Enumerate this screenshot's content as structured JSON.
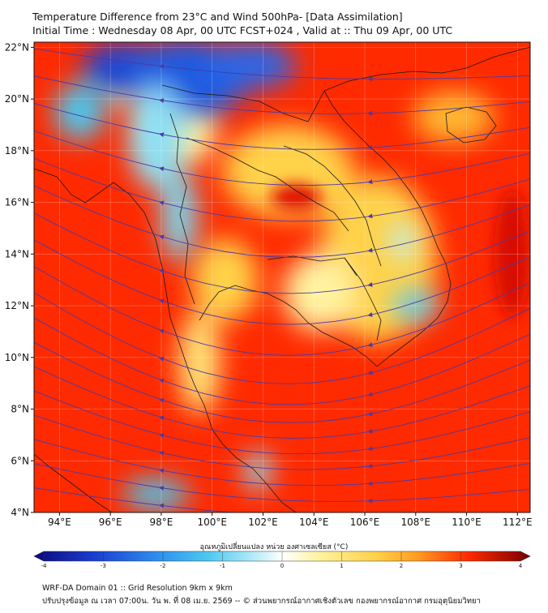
{
  "header": {
    "title_line1": "Temperature Difference from 23°C and Wind 500hPa- [Data Assimilation]",
    "title_line2": "Initial Time : Wednesday 08 Apr, 00 UTC FCST+024 , Valid at ::  Thu 09 Apr, 00 UTC"
  },
  "map": {
    "lon_range": [
      93,
      112.5
    ],
    "lat_range": [
      4,
      22.2
    ],
    "lat_ticks": [
      {
        "value": 4,
        "label": "4°N"
      },
      {
        "value": 6,
        "label": "6°N"
      },
      {
        "value": 8,
        "label": "8°N"
      },
      {
        "value": 10,
        "label": "10°N"
      },
      {
        "value": 12,
        "label": "12°N"
      },
      {
        "value": 14,
        "label": "14°N"
      },
      {
        "value": 16,
        "label": "16°N"
      },
      {
        "value": 18,
        "label": "18°N"
      },
      {
        "value": 20,
        "label": "20°N"
      },
      {
        "value": 22,
        "label": "22°N"
      }
    ],
    "lon_ticks": [
      {
        "value": 94,
        "label": "94°E"
      },
      {
        "value": 96,
        "label": "96°E"
      },
      {
        "value": 98,
        "label": "98°E"
      },
      {
        "value": 100,
        "label": "100°E"
      },
      {
        "value": 102,
        "label": "102°E"
      },
      {
        "value": 104,
        "label": "104°E"
      },
      {
        "value": 106,
        "label": "106°E"
      },
      {
        "value": 108,
        "label": "108°E"
      },
      {
        "value": 110,
        "label": "110°E"
      },
      {
        "value": 112,
        "label": "112°E"
      }
    ],
    "background_color": "#ff2a00",
    "cold_patches": [
      {
        "lon": 96.5,
        "lat": 21.2,
        "rx": 1.6,
        "ry": 1.0,
        "color": "#1a3fd0"
      },
      {
        "lon": 99.0,
        "lat": 20.8,
        "rx": 2.5,
        "ry": 1.5,
        "color": "#1f5ae0"
      },
      {
        "lon": 101.5,
        "lat": 21.3,
        "rx": 1.8,
        "ry": 0.9,
        "color": "#2a66e8"
      },
      {
        "lon": 94.8,
        "lat": 19.5,
        "rx": 1.0,
        "ry": 1.1,
        "color": "#4cc8f0"
      },
      {
        "lon": 97.8,
        "lat": 18.5,
        "rx": 1.1,
        "ry": 2.0,
        "color": "#8fe0f4"
      },
      {
        "lon": 98.7,
        "lat": 15.5,
        "rx": 0.7,
        "ry": 1.8,
        "color": "#7ad8f0"
      },
      {
        "lon": 107.5,
        "lat": 14.5,
        "rx": 0.5,
        "ry": 0.7,
        "color": "#bdeef8"
      },
      {
        "lon": 108.0,
        "lat": 12.0,
        "rx": 0.9,
        "ry": 0.6,
        "color": "#60ccf0"
      },
      {
        "lon": 97.8,
        "lat": 4.7,
        "rx": 1.3,
        "ry": 0.6,
        "color": "#4cc8f0"
      },
      {
        "lon": 101.8,
        "lat": 5.6,
        "rx": 0.5,
        "ry": 0.8,
        "color": "#8fe0f4"
      }
    ],
    "warm_patches": [
      {
        "lon": 98.8,
        "lat": 19.0,
        "rx": 1.4,
        "ry": 1.6,
        "color": "#fff3a0"
      },
      {
        "lon": 103.0,
        "lat": 17.2,
        "rx": 2.6,
        "ry": 1.8,
        "color": "#ffd24a"
      },
      {
        "lon": 106.5,
        "lat": 13.8,
        "rx": 2.3,
        "ry": 3.2,
        "color": "#ffd24a"
      },
      {
        "lon": 104.2,
        "lat": 12.5,
        "rx": 1.4,
        "ry": 1.5,
        "color": "#fff3a0"
      },
      {
        "lon": 100.5,
        "lat": 13.0,
        "rx": 1.3,
        "ry": 1.6,
        "color": "#ffd24a"
      },
      {
        "lon": 99.5,
        "lat": 9.8,
        "rx": 0.8,
        "ry": 2.0,
        "color": "#ffe87a"
      },
      {
        "lon": 109.5,
        "lat": 19.3,
        "rx": 1.6,
        "ry": 1.0,
        "color": "#ffb830"
      },
      {
        "lon": 96.3,
        "lat": 20.5,
        "rx": 0.8,
        "ry": 0.7,
        "color": "#fff3a0"
      }
    ],
    "hot_patches": [
      {
        "lon": 103.3,
        "lat": 16.2,
        "rx": 1.0,
        "ry": 0.5,
        "color": "#e01000"
      },
      {
        "lon": 111.8,
        "lat": 14.0,
        "rx": 0.7,
        "ry": 2.5,
        "color": "#d80c00"
      }
    ],
    "streamlines": [
      {
        "lat0": 21.5,
        "dip": 0.6
      },
      {
        "lat0": 20.5,
        "dip": 1.0
      },
      {
        "lat0": 19.5,
        "dip": 1.4
      },
      {
        "lat0": 18.5,
        "dip": 1.8
      },
      {
        "lat0": 17.5,
        "dip": 2.2
      },
      {
        "lat0": 16.5,
        "dip": 2.6
      },
      {
        "lat0": 15.5,
        "dip": 3.0
      },
      {
        "lat0": 14.5,
        "dip": 3.2
      },
      {
        "lat0": 13.5,
        "dip": 3.4
      },
      {
        "lat0": 12.5,
        "dip": 3.5
      },
      {
        "lat0": 11.5,
        "dip": 3.3
      },
      {
        "lat0": 10.5,
        "dip": 3.0
      },
      {
        "lat0": 9.5,
        "dip": 2.6
      },
      {
        "lat0": 8.5,
        "dip": 2.2
      },
      {
        "lat0": 7.5,
        "dip": 1.8
      },
      {
        "lat0": 6.5,
        "dip": 1.4
      },
      {
        "lat0": 5.5,
        "dip": 1.0
      },
      {
        "lat0": 4.5,
        "dip": 0.6
      }
    ],
    "streamline_color": "#4a3aa8"
  },
  "colorbar": {
    "title": "อุณหภูมิเปลี่ยนแปลง หน่วย องศาเซลเซียส (°C)",
    "min": -4,
    "max": 4,
    "ticks": [
      {
        "value": -4,
        "label": "-4"
      },
      {
        "value": -3,
        "label": "-3"
      },
      {
        "value": -2,
        "label": "-2"
      },
      {
        "value": -1,
        "label": "-1"
      },
      {
        "value": 0,
        "label": "0"
      },
      {
        "value": 1,
        "label": "1"
      },
      {
        "value": 2,
        "label": "2"
      },
      {
        "value": 3,
        "label": "3"
      },
      {
        "value": 4,
        "label": "4"
      }
    ],
    "stops": [
      {
        "value": -4,
        "color": "#0a0a80"
      },
      {
        "value": -3,
        "color": "#1a3fd0"
      },
      {
        "value": -2,
        "color": "#2e8ff0"
      },
      {
        "value": -1.2,
        "color": "#4cc8f0"
      },
      {
        "value": -0.4,
        "color": "#bdeef8"
      },
      {
        "value": 0,
        "color": "#ffffff"
      },
      {
        "value": 0.6,
        "color": "#fff3a0"
      },
      {
        "value": 1.5,
        "color": "#ffd24a"
      },
      {
        "value": 2.2,
        "color": "#ff9a20"
      },
      {
        "value": 3,
        "color": "#ff2a00"
      },
      {
        "value": 4,
        "color": "#7a0000"
      }
    ]
  },
  "footer": {
    "line1": "WRF-DA Domain 01 :: Grid Resolution 9km x 9km",
    "line2": "ปรับปรุงข้อมูล ณ เวลา 07:00น. วัน พ. ที่ 08 เม.ย. 2569 -- © ส่วนพยากรณ์อากาศเชิงตัวเลข กองพยากรณ์อากาศ กรมอุตุนิยมวิทยา"
  }
}
